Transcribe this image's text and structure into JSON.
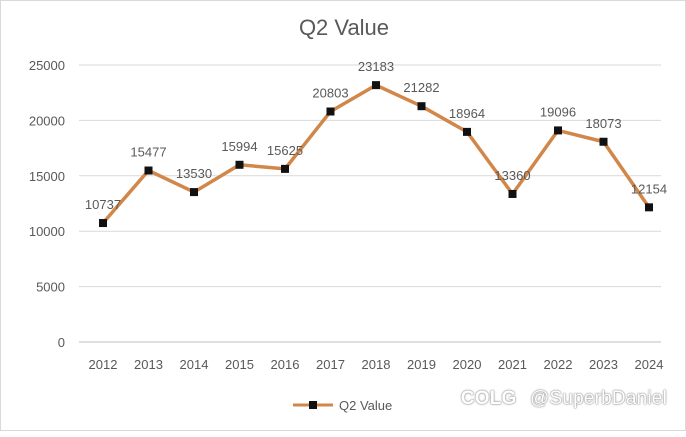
{
  "chart_data": {
    "type": "line",
    "title": "Q2 Value",
    "xlabel": "",
    "ylabel": "",
    "ylim": [
      0,
      25000
    ],
    "yticks": [
      0,
      5000,
      10000,
      15000,
      20000,
      25000
    ],
    "grid": true,
    "legend_position": "bottom",
    "categories": [
      "2012",
      "2013",
      "2014",
      "2015",
      "2016",
      "2017",
      "2018",
      "2019",
      "2020",
      "2021",
      "2022",
      "2023",
      "2024"
    ],
    "series": [
      {
        "name": "Q2 Value",
        "values": [
          10737,
          15477,
          13530,
          15994,
          15625,
          20803,
          23183,
          21282,
          18964,
          13360,
          19096,
          18073,
          12154
        ],
        "color": "#d2874a",
        "marker_color": "#111111"
      }
    ]
  },
  "watermark": {
    "logo": "COLG",
    "handle": "@SuperbDaniel"
  }
}
